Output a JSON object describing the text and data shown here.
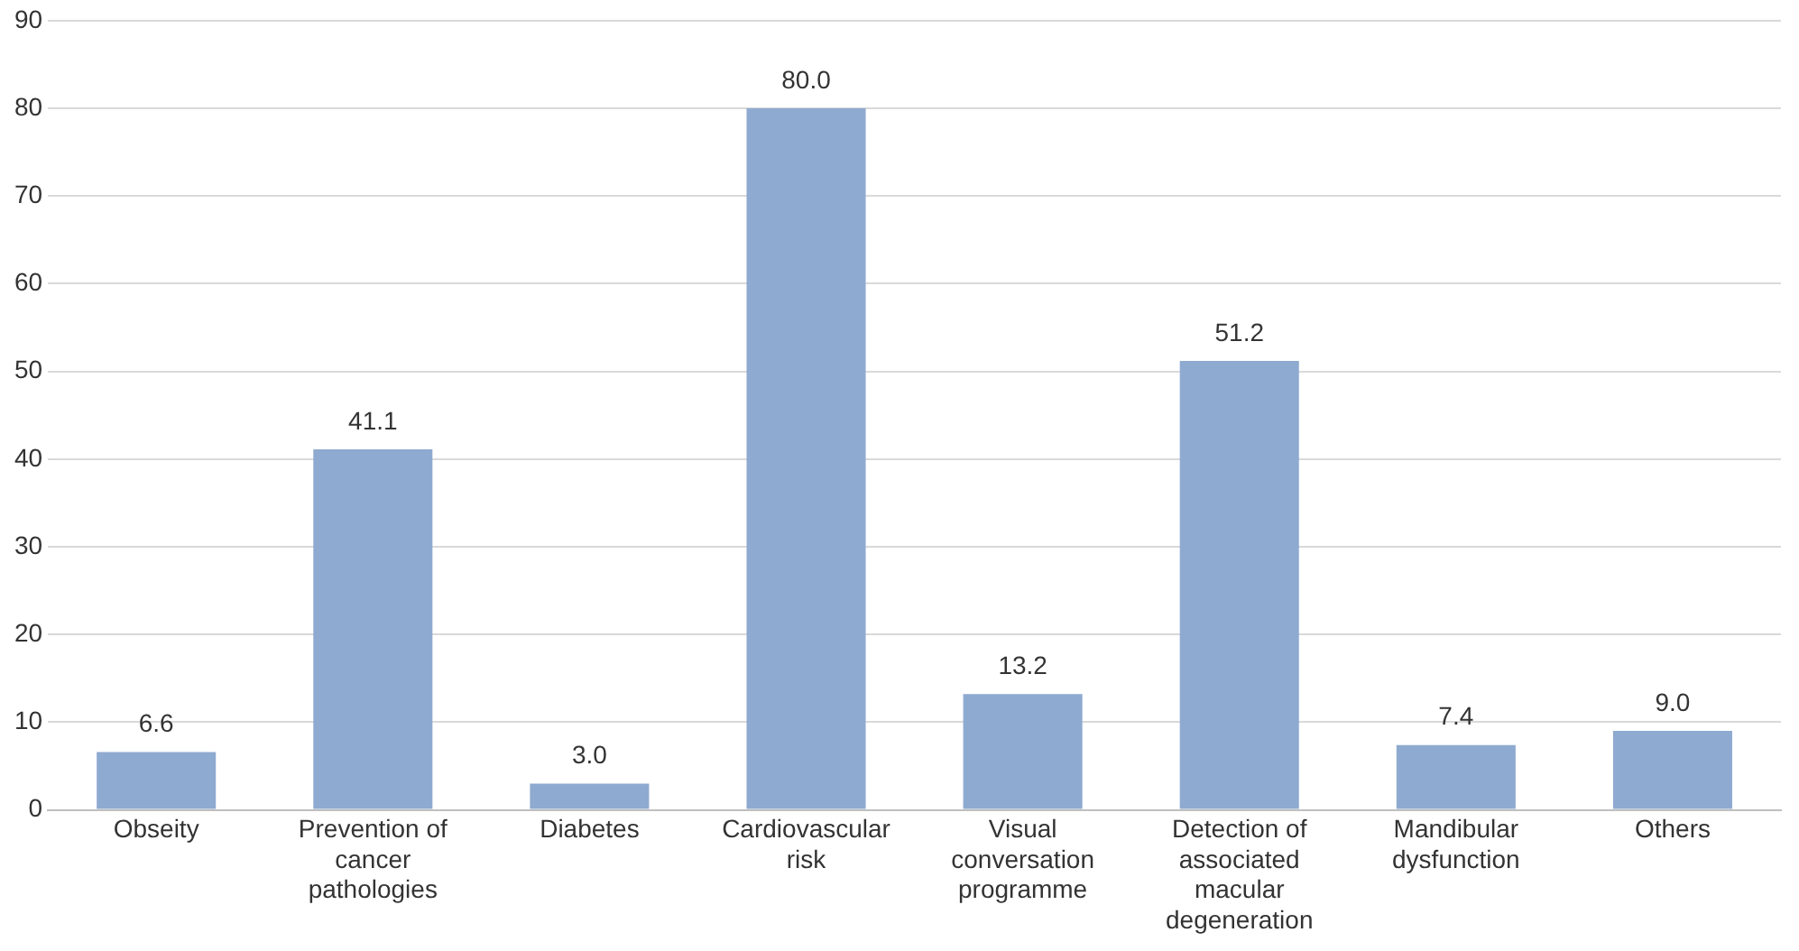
{
  "chart_data": {
    "type": "bar",
    "categories": [
      "Obseity",
      "Prevention of cancer pathologies",
      "Diabetes",
      "Cardiovascular risk",
      "Visual conversation programme",
      "Detection of associated macular degeneration",
      "Mandibular dysfunction",
      "Others"
    ],
    "values": [
      6.6,
      41.1,
      3.0,
      80.0,
      13.2,
      51.2,
      7.4,
      9.0
    ],
    "color": "#8eaad0",
    "value_labels": [
      "6.6",
      "41.1",
      "3.0",
      "80.0",
      "13.2",
      "51.2",
      "7.4",
      "9.0"
    ],
    "ylim": [
      0,
      90
    ],
    "yticks": [
      0,
      10,
      20,
      30,
      40,
      50,
      60,
      70,
      80,
      90
    ],
    "grid": "y",
    "legend": false
  }
}
